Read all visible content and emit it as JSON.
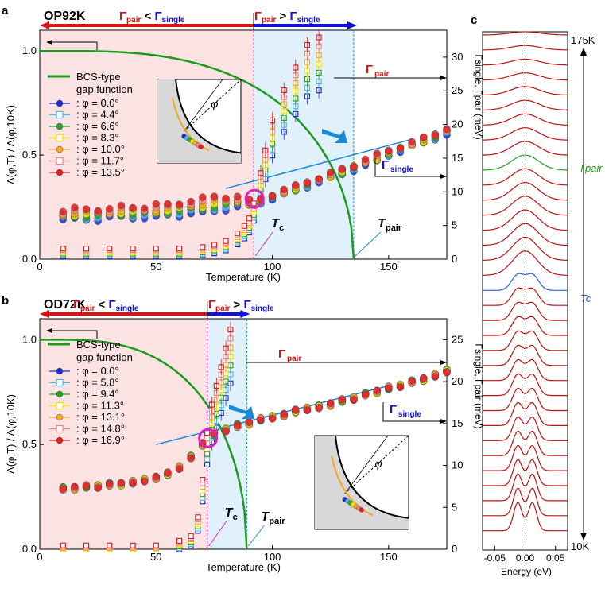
{
  "panels": [
    {
      "letter": "a",
      "sample": "OP92K",
      "left_cmp": [
        "Γ",
        "pair",
        " < ",
        "Γ",
        "single"
      ],
      "right_cmp": [
        "Γ",
        "pair",
        " > ",
        "Γ",
        "single"
      ],
      "bcs_label": [
        "BCS-type",
        "gap function"
      ],
      "ylabel": "Δ(φ,T) / Δ(φ,10K)",
      "xlabel": "Temperature (K)",
      "ylabel2": "Γsingle, Γpair (meV)",
      "tc_label": "Tc",
      "tpair_label": "Tpair",
      "gpair_label": "Γpair",
      "gsingle_label": "Γsingle",
      "phi_symbol": "φ",
      "legend": [
        {
          "text": ": φ = 0.0°",
          "color": "#1a2fd6"
        },
        {
          "text": ": φ = 4.4°",
          "color": "#4fb8e8"
        },
        {
          "text": ": φ = 6.6°",
          "color": "#2ca02c"
        },
        {
          "text": ": φ = 8.3°",
          "color": "#f2e600"
        },
        {
          "text": ": φ = 10.0°",
          "color": "#f5a623"
        },
        {
          "text": ": φ = 11.7°",
          "color": "#f08080"
        },
        {
          "text": ": φ = 13.5°",
          "color": "#e02020"
        }
      ],
      "xticks": [
        "0",
        "50",
        "100",
        "150"
      ],
      "yticks_left": [
        "0.0",
        "0.5",
        "1.0"
      ],
      "yticks_right": [
        "0",
        "5",
        "10",
        "15",
        "20",
        "25",
        "30"
      ]
    },
    {
      "letter": "b",
      "sample": "OD72K",
      "left_cmp": [
        "Γ",
        "pair",
        " < ",
        "Γ",
        "single"
      ],
      "right_cmp": [
        "Γ",
        "pair",
        " > ",
        "Γ",
        "single"
      ],
      "bcs_label": [
        "BCS-type",
        "gap function"
      ],
      "ylabel": "Δ(φ,T) / Δ(φ,10K)",
      "xlabel": "Temperature (K)",
      "ylabel2": "Γsingle, Γpair (meV)",
      "tc_label": "Tc",
      "tpair_label": "Tpair",
      "gpair_label": "Γpair",
      "gsingle_label": "Γsingle",
      "phi_symbol": "φ",
      "legend": [
        {
          "text": ": φ = 0.0°",
          "color": "#1a2fd6"
        },
        {
          "text": ": φ = 5.8°",
          "color": "#4fb8e8"
        },
        {
          "text": ": φ = 9.4°",
          "color": "#2ca02c"
        },
        {
          "text": ": φ = 11.3°",
          "color": "#f2e600"
        },
        {
          "text": ": φ = 13.1°",
          "color": "#f5a623"
        },
        {
          "text": ": φ = 14.8°",
          "color": "#f08080"
        },
        {
          "text": ": φ = 16.9°",
          "color": "#e02020"
        }
      ],
      "xticks": [
        "0",
        "50",
        "100",
        "150"
      ],
      "yticks_left": [
        "0.0",
        "0.5",
        "1.0"
      ],
      "yticks_right": [
        "0",
        "5",
        "10",
        "15",
        "20",
        "25"
      ]
    }
  ],
  "panel_c": {
    "letter": "c",
    "top_label": "175K",
    "bottom_label": "10K",
    "tpair_label": "Tpair",
    "tc_label": "Tc",
    "xlabel": "Energy (eV)",
    "xticks": [
      "-0.05",
      "0.00",
      "0.05"
    ]
  },
  "colors": {
    "red_band": "#fbe3e3",
    "blue_band": "#e0f1fb",
    "bcs": "#1e9a1e",
    "magenta": "#e020c0",
    "gamma_pair": "#e01010",
    "gamma_single": "#1010e0",
    "c_spectra": "#c01010",
    "c_tpair": "#20a020",
    "c_tc": "#2060e0"
  },
  "chart_data": [
    {
      "type": "scatter",
      "panel": "a",
      "xlim": [
        0,
        175
      ],
      "ylim": [
        0,
        1.1
      ],
      "y2lim": [
        0,
        34
      ],
      "Tc": 92,
      "Tpair": 135,
      "bcs_curve": {
        "name": "BCS-type gap function",
        "Tc": 135
      },
      "series": [
        {
          "name": ": φ = 0.0°",
          "x": [
            10,
            15,
            20,
            25,
            30,
            35,
            40,
            45,
            50,
            55,
            60,
            65,
            70,
            75,
            80,
            85,
            90,
            95,
            100,
            105,
            110,
            115,
            120,
            125,
            130,
            135,
            140,
            145,
            150,
            155,
            160,
            165,
            170,
            175
          ],
          "y": [
            0.19,
            0.19,
            0.19,
            0.19,
            0.2,
            0.2,
            0.2,
            0.2,
            0.2,
            0.21,
            0.21,
            0.22,
            0.22,
            0.23,
            0.24,
            0.25,
            0.26,
            0.27,
            0.29,
            0.31,
            0.33,
            0.35,
            0.37,
            0.39,
            0.41,
            0.43,
            0.45,
            0.47,
            0.5,
            0.52,
            0.54,
            0.56,
            0.58,
            0.6
          ]
        },
        {
          "name": ": φ = 13.5°",
          "x": [
            10,
            15,
            20,
            25,
            30,
            35,
            40,
            45,
            50,
            55,
            60,
            65,
            70,
            75,
            80,
            85,
            90,
            95,
            100,
            105,
            110,
            115,
            120,
            125,
            130,
            135,
            140,
            145,
            150,
            155,
            160,
            165,
            170,
            175
          ],
          "y": [
            0.23,
            0.24,
            0.24,
            0.24,
            0.24,
            0.25,
            0.25,
            0.25,
            0.26,
            0.26,
            0.27,
            0.28,
            0.29,
            0.3,
            0.3,
            0.3,
            0.28,
            0.29,
            0.31,
            0.33,
            0.35,
            0.37,
            0.39,
            0.41,
            0.43,
            0.45,
            0.48,
            0.5,
            0.52,
            0.54,
            0.56,
            0.58,
            0.6,
            0.63
          ]
        }
      ],
      "gamma_pair": {
        "x": [
          10,
          20,
          30,
          40,
          50,
          60,
          70,
          75,
          80,
          85,
          88,
          90,
          92,
          95,
          97,
          100,
          105,
          110,
          115,
          120
        ],
        "y_meV": [
          1,
          1,
          1,
          1,
          1,
          1,
          1.2,
          1.5,
          2,
          3,
          4,
          5,
          7,
          11,
          14,
          18,
          22,
          25,
          28,
          29
        ]
      },
      "gamma_single_line": {
        "x": [
          80,
          160
        ],
        "y_meV": [
          10.5,
          17.8
        ]
      }
    },
    {
      "type": "scatter",
      "panel": "b",
      "xlim": [
        0,
        175
      ],
      "ylim": [
        0,
        1.1
      ],
      "y2lim": [
        0,
        27.5
      ],
      "Tc": 72,
      "Tpair": 89,
      "bcs_curve": {
        "name": "BCS-type gap function",
        "Tc": 89
      },
      "series": [
        {
          "name": ": φ = 0.0°",
          "x": [
            10,
            15,
            20,
            25,
            30,
            35,
            40,
            45,
            50,
            55,
            60,
            65,
            70,
            75,
            80,
            85,
            90,
            95,
            100,
            105,
            110,
            115,
            120,
            125,
            130,
            135,
            140,
            145,
            150,
            155,
            160,
            165,
            170,
            175
          ],
          "y": [
            0.29,
            0.29,
            0.3,
            0.3,
            0.31,
            0.31,
            0.32,
            0.33,
            0.34,
            0.36,
            0.39,
            0.44,
            0.5,
            0.55,
            0.57,
            0.59,
            0.6,
            0.62,
            0.63,
            0.64,
            0.66,
            0.67,
            0.68,
            0.69,
            0.71,
            0.72,
            0.74,
            0.75,
            0.77,
            0.78,
            0.8,
            0.81,
            0.83,
            0.85
          ]
        }
      ],
      "gamma_pair": {
        "x": [
          10,
          20,
          30,
          40,
          50,
          60,
          65,
          68,
          70,
          72,
          74,
          76,
          78,
          80,
          82
        ],
        "y_meV": [
          0,
          0,
          0,
          0,
          0,
          0.5,
          1,
          3,
          7,
          12,
          15,
          17,
          19,
          21,
          23
        ]
      },
      "gamma_single_line": {
        "x": [
          50,
          150
        ],
        "y_meV": [
          12.5,
          19.5
        ]
      }
    }
  ]
}
